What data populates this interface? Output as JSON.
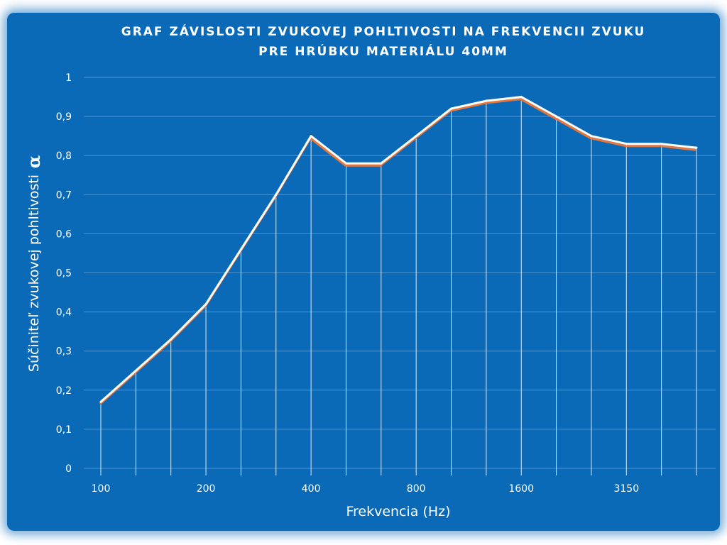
{
  "chart_data": {
    "type": "line",
    "title_lines": [
      "GRAF ZÁVISLOSTI ZVUKOVEJ POHLTIVOSTI NA FREKVENCII ZVUKU",
      "PRE HRÚBKU MATERIÁLU 40MM"
    ],
    "xlabel": "Frekvencia (Hz)",
    "ylabel": "Súčiniteľ zvukovej pohltivosti",
    "ylabel_symbol": "α",
    "x": [
      "100",
      "125",
      "160",
      "200",
      "250",
      "315",
      "400",
      "500",
      "630",
      "800",
      "1000",
      "1250",
      "1600",
      "2000",
      "2500",
      "3150",
      "4000",
      "5000"
    ],
    "x_tick_labels": [
      {
        "index": 0,
        "label": "100"
      },
      {
        "index": 3,
        "label": "200"
      },
      {
        "index": 6,
        "label": "400"
      },
      {
        "index": 9,
        "label": "800"
      },
      {
        "index": 12,
        "label": "1600"
      },
      {
        "index": 15,
        "label": "3150"
      }
    ],
    "series": [
      {
        "values": [
          0.17,
          0.25,
          0.33,
          0.42,
          0.56,
          0.7,
          0.85,
          0.78,
          0.78,
          0.85,
          0.92,
          0.94,
          0.95,
          0.9,
          0.85,
          0.83,
          0.83,
          0.82
        ]
      }
    ],
    "ylim": [
      0,
      1
    ],
    "y_ticks": [
      "0",
      "0,1",
      "0,2",
      "0,3",
      "0,4",
      "0,5",
      "0,6",
      "0,7",
      "0,8",
      "0,9",
      "1"
    ],
    "grid": true,
    "drop_lines": true,
    "colors": {
      "background": "#0a6ab8",
      "line": "#ffffff",
      "line_shadow": "#e8753a",
      "gridline": "#4a94d2"
    }
  }
}
